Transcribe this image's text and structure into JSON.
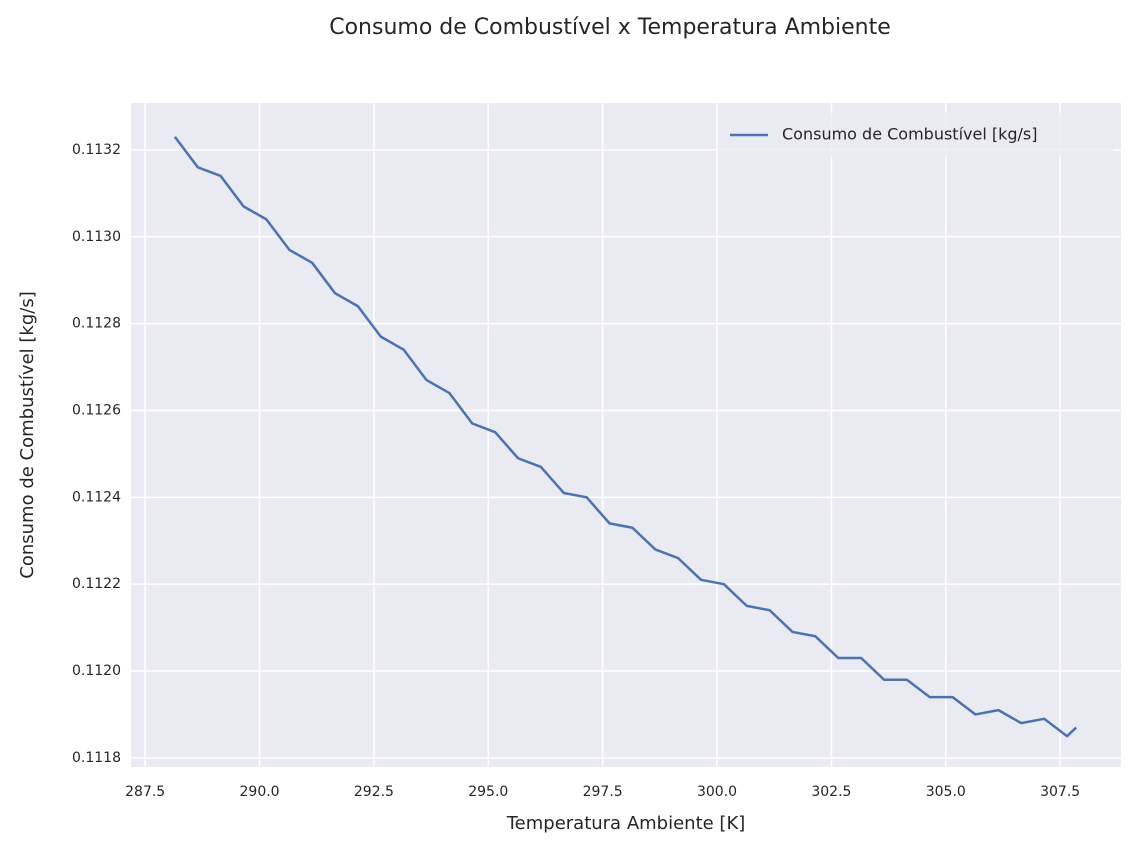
{
  "chart_data": {
    "type": "line",
    "title": "Consumo de Combustível x Temperatura Ambiente",
    "xlabel": "Temperatura Ambiente [K]",
    "ylabel": "Consumo de Combustível [kg/s]",
    "x": [
      288.15,
      288.65,
      289.15,
      289.65,
      290.15,
      290.65,
      291.15,
      291.65,
      292.15,
      292.65,
      293.15,
      293.65,
      294.15,
      294.65,
      295.15,
      295.65,
      296.15,
      296.65,
      297.15,
      297.65,
      298.15,
      298.65,
      299.15,
      299.65,
      300.15,
      300.65,
      301.15,
      301.65,
      302.15,
      302.65,
      303.15,
      303.65,
      304.15,
      304.65,
      305.15,
      305.65,
      306.15,
      306.65,
      307.15,
      307.65,
      307.85
    ],
    "series": [
      {
        "name": "Consumo de Combustível [kg/s]",
        "color": "#4c72b0",
        "values": [
          0.11323,
          0.11316,
          0.11314,
          0.11307,
          0.11304,
          0.11297,
          0.11294,
          0.11287,
          0.11284,
          0.11277,
          0.11274,
          0.11267,
          0.11264,
          0.11257,
          0.11255,
          0.11249,
          0.11247,
          0.11241,
          0.1124,
          0.11234,
          0.11233,
          0.11228,
          0.11226,
          0.11221,
          0.1122,
          0.11215,
          0.11214,
          0.11209,
          0.11208,
          0.11203,
          0.11203,
          0.11198,
          0.11198,
          0.11194,
          0.11194,
          0.1119,
          0.11191,
          0.11188,
          0.11189,
          0.11185,
          0.11187
        ]
      }
    ],
    "xlim": [
      287.19,
      308.83
    ],
    "ylim": [
      0.111779,
      0.113308
    ],
    "xticks": [
      {
        "value": 287.5,
        "label": "287.5"
      },
      {
        "value": 290,
        "label": "290.0"
      },
      {
        "value": 292.5,
        "label": "292.5"
      },
      {
        "value": 295,
        "label": "295.0"
      },
      {
        "value": 297.5,
        "label": "297.5"
      },
      {
        "value": 300,
        "label": "300.0"
      },
      {
        "value": 302.5,
        "label": "302.5"
      },
      {
        "value": 305,
        "label": "305.0"
      },
      {
        "value": 307.5,
        "label": "307.5"
      }
    ],
    "yticks": [
      0.1118,
      {
        "value": 0.112,
        "label": "0.1120"
      },
      0.1122,
      0.1124,
      0.1126,
      0.1128,
      {
        "value": 0.113,
        "label": "0.1130"
      },
      0.1132
    ],
    "grid": true,
    "legend": "upper right"
  }
}
